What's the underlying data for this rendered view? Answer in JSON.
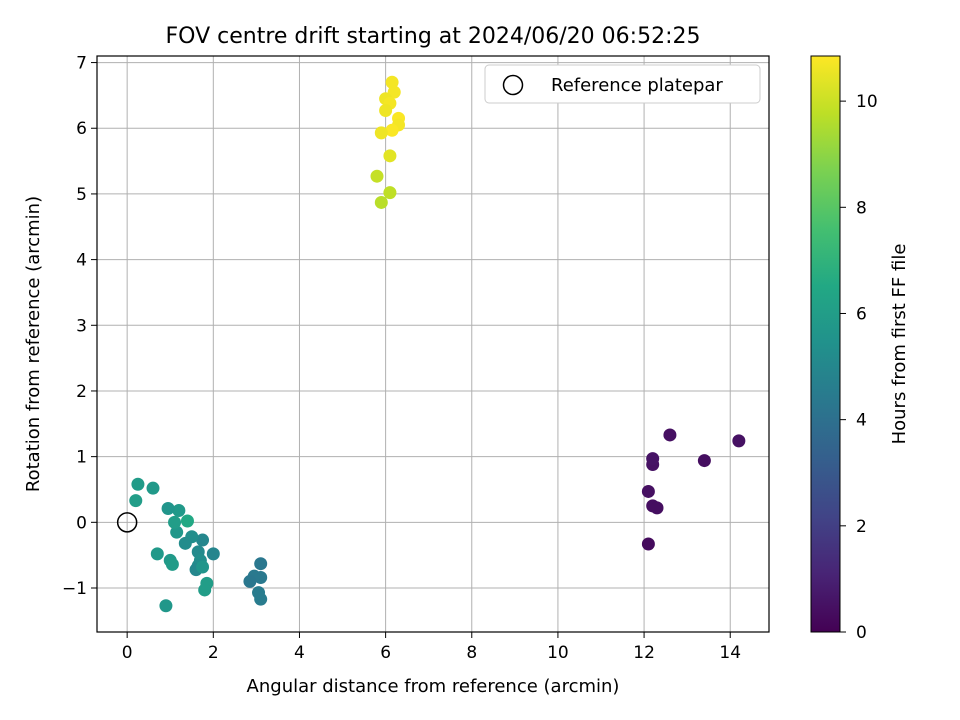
{
  "chart_data": {
    "type": "scatter",
    "title": "FOV centre drift starting at 2024/06/20 06:52:25",
    "xlabel": "Angular distance from reference (arcmin)",
    "ylabel": "Rotation from reference (arcmin)",
    "colorbar_label": "Hours from first FF file",
    "xlim": [
      -0.7,
      14.9
    ],
    "ylim": [
      -1.67,
      7.1
    ],
    "clim": [
      0,
      10.85
    ],
    "xticks": [
      0,
      2,
      4,
      6,
      8,
      10,
      12,
      14
    ],
    "xtick_labels": [
      "0",
      "2",
      "4",
      "6",
      "8",
      "10",
      "12",
      "14"
    ],
    "yticks": [
      -1,
      0,
      1,
      2,
      3,
      4,
      5,
      6,
      7
    ],
    "ytick_labels": [
      "−1",
      "0",
      "1",
      "2",
      "3",
      "4",
      "5",
      "6",
      "7"
    ],
    "cticks": [
      0,
      2,
      4,
      6,
      8,
      10
    ],
    "ctick_labels": [
      "0",
      "2",
      "4",
      "6",
      "8",
      "10"
    ],
    "colormap": "viridis",
    "grid": true,
    "legend": {
      "placement": "upper-right",
      "entries": [
        "Reference platepar"
      ]
    },
    "reference_point": {
      "x": 0,
      "y": 0
    },
    "points": [
      {
        "x": 12.1,
        "y": -0.33,
        "c": 0.3
      },
      {
        "x": 12.2,
        "y": 0.25,
        "c": 0.4
      },
      {
        "x": 12.3,
        "y": 0.22,
        "c": 0.4
      },
      {
        "x": 12.1,
        "y": 0.47,
        "c": 0.45
      },
      {
        "x": 12.2,
        "y": 0.88,
        "c": 0.5
      },
      {
        "x": 12.2,
        "y": 0.97,
        "c": 0.55
      },
      {
        "x": 12.6,
        "y": 1.33,
        "c": 0.45
      },
      {
        "x": 13.4,
        "y": 0.94,
        "c": 0.4
      },
      {
        "x": 14.2,
        "y": 1.24,
        "c": 0.5
      },
      {
        "x": 3.1,
        "y": -1.17,
        "c": 4.5
      },
      {
        "x": 3.05,
        "y": -1.07,
        "c": 4.5
      },
      {
        "x": 3.1,
        "y": -0.84,
        "c": 4.4
      },
      {
        "x": 2.95,
        "y": -0.82,
        "c": 4.4
      },
      {
        "x": 2.85,
        "y": -0.9,
        "c": 4.3
      },
      {
        "x": 3.1,
        "y": -0.63,
        "c": 4.3
      },
      {
        "x": 2.0,
        "y": -0.48,
        "c": 4.9
      },
      {
        "x": 1.75,
        "y": -0.27,
        "c": 5.0
      },
      {
        "x": 1.65,
        "y": -0.45,
        "c": 5.1
      },
      {
        "x": 1.7,
        "y": -0.58,
        "c": 5.3
      },
      {
        "x": 1.65,
        "y": -0.66,
        "c": 5.2
      },
      {
        "x": 1.6,
        "y": -0.72,
        "c": 5.0
      },
      {
        "x": 1.5,
        "y": -0.22,
        "c": 5.3
      },
      {
        "x": 1.35,
        "y": -0.32,
        "c": 5.2
      },
      {
        "x": 1.75,
        "y": -0.68,
        "c": 5.6
      },
      {
        "x": 1.85,
        "y": -0.93,
        "c": 6.0
      },
      {
        "x": 1.8,
        "y": -1.03,
        "c": 6.0
      },
      {
        "x": 1.4,
        "y": 0.02,
        "c": 6.5
      },
      {
        "x": 1.2,
        "y": 0.18,
        "c": 5.8
      },
      {
        "x": 1.15,
        "y": -0.15,
        "c": 5.7
      },
      {
        "x": 1.1,
        "y": 0.0,
        "c": 6.0
      },
      {
        "x": 0.95,
        "y": 0.21,
        "c": 5.6
      },
      {
        "x": 1.0,
        "y": -0.58,
        "c": 5.8
      },
      {
        "x": 1.05,
        "y": -0.64,
        "c": 5.9
      },
      {
        "x": 0.7,
        "y": -0.48,
        "c": 5.8
      },
      {
        "x": 0.9,
        "y": -1.27,
        "c": 5.7
      },
      {
        "x": 0.6,
        "y": 0.52,
        "c": 5.8
      },
      {
        "x": 0.25,
        "y": 0.58,
        "c": 5.9
      },
      {
        "x": 0.2,
        "y": 0.33,
        "c": 6.0
      },
      {
        "x": 6.15,
        "y": 6.7,
        "c": 10.7
      },
      {
        "x": 6.2,
        "y": 6.55,
        "c": 10.7
      },
      {
        "x": 6.0,
        "y": 6.45,
        "c": 10.6
      },
      {
        "x": 6.1,
        "y": 6.38,
        "c": 10.7
      },
      {
        "x": 6.0,
        "y": 6.27,
        "c": 10.6
      },
      {
        "x": 6.3,
        "y": 6.15,
        "c": 10.8
      },
      {
        "x": 6.3,
        "y": 6.05,
        "c": 10.7
      },
      {
        "x": 6.15,
        "y": 5.97,
        "c": 10.8
      },
      {
        "x": 5.9,
        "y": 5.93,
        "c": 10.6
      },
      {
        "x": 6.1,
        "y": 5.58,
        "c": 10.4
      },
      {
        "x": 5.8,
        "y": 5.27,
        "c": 9.9
      },
      {
        "x": 6.1,
        "y": 5.02,
        "c": 9.8
      },
      {
        "x": 5.9,
        "y": 4.87,
        "c": 9.7
      }
    ]
  }
}
